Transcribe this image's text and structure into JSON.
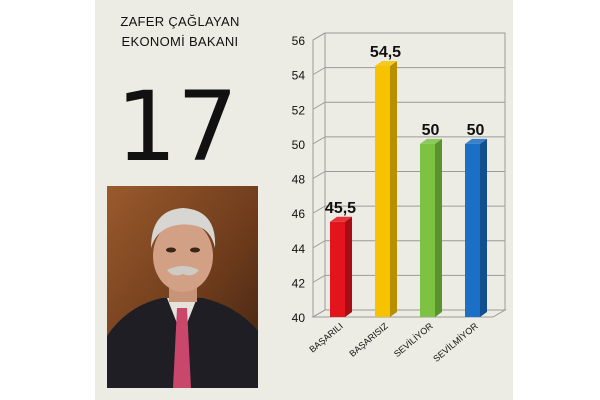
{
  "header": {
    "line1": "ZAFER ÇAĞLAYAN",
    "line2": "EKONOMİ BAKANI"
  },
  "rank": "17",
  "photo": {
    "subject": "portrait-photo"
  },
  "chart_data": {
    "type": "bar",
    "title": "",
    "xlabel": "",
    "ylabel": "",
    "categories": [
      "BAŞARILI",
      "BAŞARISIZ",
      "SEVİLİYOR",
      "SEVİLMİYOR"
    ],
    "values": [
      45.5,
      54.5,
      50,
      50
    ],
    "data_labels": [
      "45,5",
      "54,5",
      "50",
      "50"
    ],
    "colors": [
      "#e3141b",
      "#f7c300",
      "#7dc243",
      "#1b6fc4"
    ],
    "side_colors": [
      "#a70d12",
      "#b88f00",
      "#5a922d",
      "#134f8e"
    ],
    "ylim": [
      40,
      56
    ],
    "yticks": [
      "40",
      "42",
      "44",
      "46",
      "48",
      "50",
      "52",
      "54",
      "56"
    ],
    "grid": true,
    "legend": "none",
    "style": "3d"
  }
}
